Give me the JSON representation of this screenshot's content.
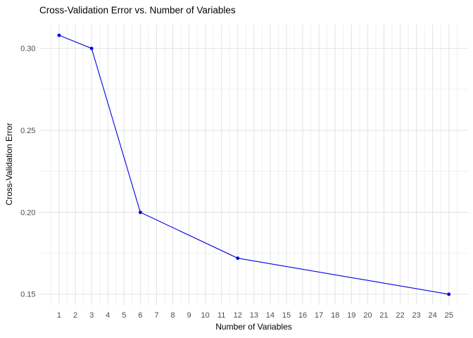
{
  "chart_data": {
    "type": "line",
    "title": "Cross-Validation Error vs. Number of Variables",
    "xlabel": "Number of Variables",
    "ylabel": "Cross-Validation Error",
    "x": [
      1,
      3,
      6,
      12,
      25
    ],
    "y": [
      0.308,
      0.3,
      0.2,
      0.172,
      0.15
    ],
    "x_ticks": [
      1,
      2,
      3,
      4,
      5,
      6,
      7,
      8,
      9,
      10,
      11,
      12,
      13,
      14,
      15,
      16,
      17,
      18,
      19,
      20,
      21,
      22,
      23,
      24,
      25
    ],
    "y_ticks": [
      0.15,
      0.2,
      0.25,
      0.3
    ],
    "y_tick_labels": [
      "0.15",
      "0.20",
      "0.25",
      "0.30"
    ],
    "xlim": [
      -0.2,
      26.2
    ],
    "ylim": [
      0.1435,
      0.3145
    ],
    "grid": "major+minor",
    "legend": "none",
    "colors": {
      "line": "#0000e6",
      "point": "#0000e6",
      "grid_major": "#e2e2e2",
      "grid_minor": "#f0f0f0",
      "tick_label": "#4d4d4d",
      "title": "#000000",
      "axis_title": "#000000"
    }
  }
}
